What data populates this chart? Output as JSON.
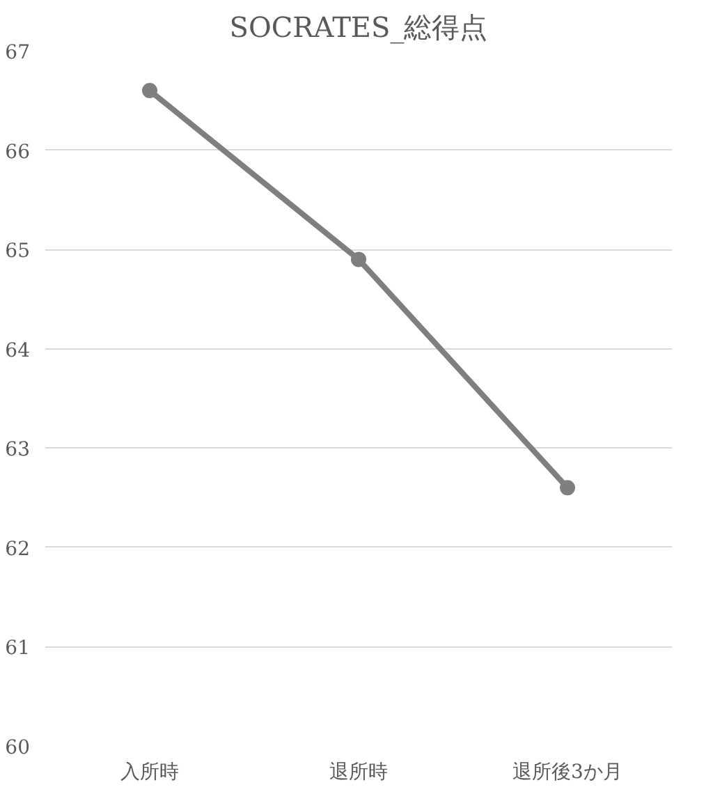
{
  "chart_data": {
    "type": "line",
    "title": "SOCRATES_総得点",
    "categories": [
      "入所時",
      "退所時",
      "退所後3か月"
    ],
    "series": [
      {
        "color": "#7f7f7f",
        "values": [
          66.6,
          64.9,
          62.6
        ]
      }
    ],
    "ylim": [
      60,
      67
    ],
    "yticks": [
      60,
      61,
      62,
      63,
      64,
      65,
      66,
      67
    ],
    "grid": "y",
    "marker": "circle",
    "line_style": "solid"
  }
}
